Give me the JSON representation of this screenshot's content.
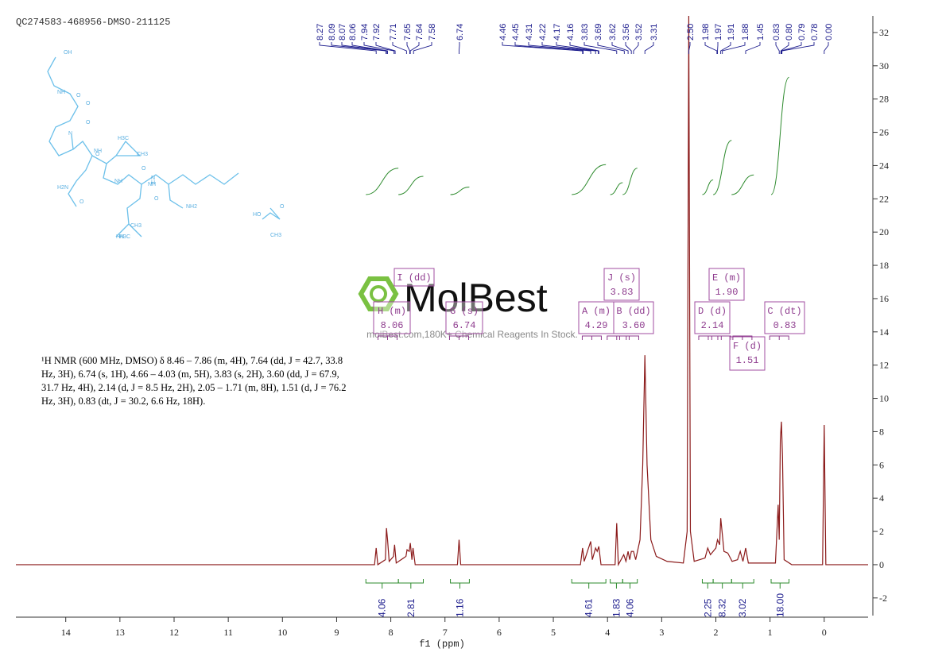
{
  "sample_name": "QC274583-468956-DMSO-211125",
  "description": "¹H NMR (600 MHz, DMSO) δ 8.46 – 7.86 (m, 4H), 7.64 (dd, J = 42.7, 33.8 Hz, 3H), 6.74 (s, 1H), 4.66 – 4.03 (m, 5H), 3.83 (s, 2H), 3.60 (dd, J = 67.9, 31.7 Hz, 4H), 2.14 (d, J = 8.5 Hz, 2H), 2.05 – 1.71 (m, 8H), 1.51 (d, J = 76.2 Hz, 3H), 0.83 (dt, J = 30.2, 6.6 Hz, 18H).",
  "watermark": {
    "brand": "MolBest",
    "tagline": "molBest.com,180K+ Chemical Reagents In Stock."
  },
  "molecule_labels": [
    "OH",
    "O",
    "NH",
    "O",
    "N",
    "O",
    "NH",
    "CH3",
    "H3C",
    "O",
    "NH",
    "O",
    "NH",
    "O",
    "NH2",
    "H2N",
    "O",
    "HN",
    "N",
    "H",
    "CH3",
    "H3C",
    "HO",
    "O",
    "CH3"
  ],
  "chart_data": {
    "type": "line",
    "x_label": "f1 (ppm)",
    "xlim": [
      14.92,
      -0.81
    ],
    "xticks": [
      14,
      13,
      12,
      11,
      10,
      9,
      8,
      7,
      6,
      5,
      4,
      3,
      2,
      1,
      0
    ],
    "ylim": [
      -3.06,
      33
    ],
    "yticks": [
      -2,
      0,
      2,
      4,
      6,
      8,
      10,
      12,
      14,
      16,
      18,
      20,
      22,
      24,
      26,
      28,
      30,
      32
    ],
    "color": "#8b1a1a",
    "x": [
      14.92,
      8.3,
      8.27,
      8.24,
      8.1,
      8.08,
      8.06,
      8.03,
      7.95,
      7.93,
      7.9,
      7.72,
      7.7,
      7.66,
      7.64,
      7.61,
      7.59,
      7.55,
      6.77,
      6.74,
      6.71,
      4.5,
      4.46,
      4.43,
      4.31,
      4.28,
      4.22,
      4.19,
      4.16,
      4.12,
      3.86,
      3.83,
      3.8,
      3.7,
      3.66,
      3.62,
      3.59,
      3.56,
      3.52,
      3.48,
      3.4,
      3.35,
      3.31,
      3.27,
      3.2,
      3.1,
      2.9,
      2.6,
      2.53,
      2.5,
      2.47,
      2.4,
      2.2,
      2.15,
      2.1,
      2.0,
      1.97,
      1.93,
      1.91,
      1.88,
      1.85,
      1.78,
      1.7,
      1.6,
      1.55,
      1.5,
      1.45,
      1.4,
      0.9,
      0.85,
      0.83,
      0.81,
      0.79,
      0.77,
      0.74,
      0.6,
      0.03,
      0.0,
      -0.03,
      -0.81
    ],
    "values": [
      0,
      0,
      1.0,
      0,
      0.3,
      2.2,
      1.5,
      0.2,
      0.5,
      1.2,
      0.1,
      0.5,
      0.9,
      0.8,
      1.3,
      0.3,
      1.0,
      0,
      0,
      1.5,
      0,
      0,
      1.0,
      0.2,
      1.4,
      0.3,
      1.0,
      0.8,
      1.1,
      0,
      0,
      2.5,
      0,
      0.6,
      0.2,
      0.8,
      0.3,
      0.8,
      0.8,
      0.3,
      1.5,
      6,
      12.6,
      6,
      1.5,
      0.5,
      0.2,
      0.1,
      2,
      33,
      2,
      0.2,
      0.4,
      1.0,
      0.6,
      1.0,
      1.5,
      1.2,
      2.8,
      1.8,
      0.8,
      0.7,
      0.2,
      0.3,
      0.8,
      0.2,
      1.0,
      0.1,
      0.1,
      3.6,
      1.5,
      7.5,
      8.6,
      6.5,
      0.3,
      0,
      0,
      8.4,
      0,
      0
    ],
    "peak_labels": [
      8.27,
      8.09,
      8.07,
      8.06,
      7.94,
      7.92,
      7.71,
      7.65,
      7.64,
      7.58,
      6.74,
      4.46,
      4.45,
      4.31,
      4.22,
      4.17,
      4.16,
      3.83,
      3.69,
      3.62,
      3.56,
      3.52,
      3.31,
      {
        "value": 2.5,
        "label": "2.50"
      },
      1.98,
      1.97,
      1.91,
      1.88,
      1.45,
      0.83,
      {
        "value": 0.8,
        "label": "0.80"
      },
      0.79,
      0.78,
      {
        "value": 0,
        "label": "0.00"
      }
    ],
    "integrals": {
      "ranges": [
        [
          8.46,
          7.86
        ],
        [
          7.86,
          7.4
        ],
        [
          6.9,
          6.55
        ],
        [
          4.66,
          4.03
        ],
        [
          3.95,
          3.72
        ],
        [
          3.72,
          3.45
        ],
        [
          2.25,
          2.05
        ],
        [
          2.05,
          1.71
        ],
        [
          1.71,
          1.3
        ],
        [
          0.98,
          0.65
        ]
      ],
      "values": [
        4.06,
        2.81,
        1.16,
        4.61,
        1.83,
        4.06,
        2.25,
        8.32,
        3.02,
        18
      ],
      "value_labels": [
        "4.06",
        "2.81",
        "1.16",
        "4.61",
        "1.83",
        "4.06",
        "2.25",
        "8.32",
        "3.02",
        "18.00"
      ],
      "color": "#2e8b2e"
    },
    "multiplets": [
      {
        "label": "I (dd)"
      },
      {
        "label": "H (m)",
        "shift": 8.06
      },
      {
        "label": "G (s)",
        "shift": 6.74
      },
      {
        "label": "J (s)",
        "shift": 3.83
      },
      {
        "label": "A (m)",
        "shift": 4.29
      },
      {
        "label": "B (dd)",
        "shift": {
          "value": 3.6,
          "label": "3.60"
        }
      },
      {
        "label": "E (m)",
        "shift": {
          "value": 1.9,
          "label": "1.90"
        }
      },
      {
        "label": "D (d)",
        "shift": 2.14
      },
      {
        "label": "C (dt)",
        "shift": 0.83
      },
      {
        "label": "F (d)",
        "shift": 1.51
      }
    ]
  }
}
